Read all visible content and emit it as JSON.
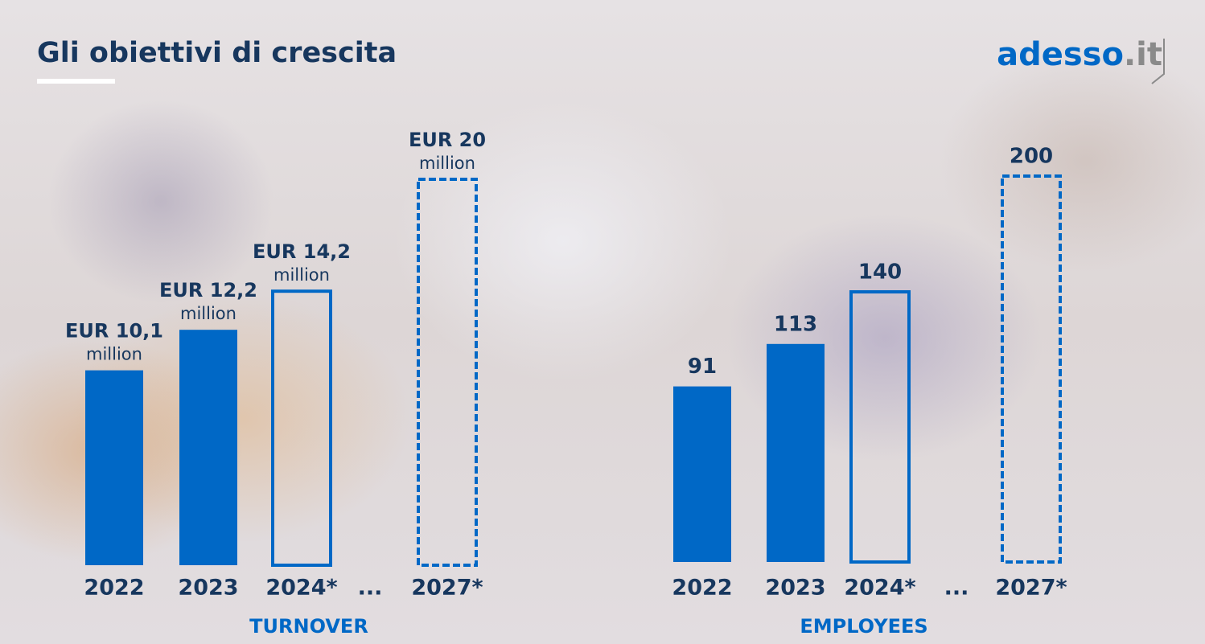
{
  "title": "Gli obiettivi di crescita",
  "logo": {
    "name": "adesso",
    "suffix": ".it"
  },
  "chart_data": [
    {
      "type": "bar",
      "title": "TURNOVER",
      "categories": [
        "2022",
        "2023",
        "2024*",
        "...",
        "2027*"
      ],
      "values": [
        10.1,
        12.2,
        14.2,
        null,
        20
      ],
      "value_labels": [
        "EUR 10,1",
        "EUR 12,2",
        "EUR 14,2",
        null,
        "EUR 20"
      ],
      "unit_label": "million",
      "styles": [
        "solid",
        "solid",
        "outline",
        null,
        "dashed"
      ],
      "color": "#0068c6"
    },
    {
      "type": "bar",
      "title": "EMPLOYEES",
      "categories": [
        "2022",
        "2023",
        "2024*",
        "...",
        "2027*"
      ],
      "values": [
        91,
        113,
        140,
        null,
        200
      ],
      "styles": [
        "solid",
        "solid",
        "outline",
        null,
        "dashed"
      ],
      "color": "#0068c6"
    }
  ]
}
